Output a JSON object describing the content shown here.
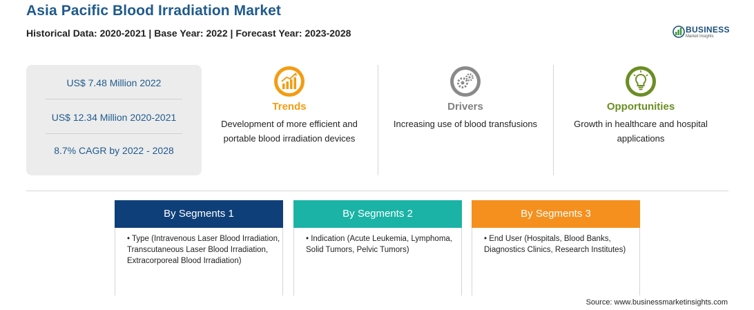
{
  "header": {
    "title": "Asia Pacific Blood Irradiation Market",
    "subtitle": "Historical Data: 2020-2021 | Base Year: 2022 | Forecast Year: 2023-2028"
  },
  "logo": {
    "name": "BUSINESS",
    "tagline": "Market Insights"
  },
  "stats": [
    "US$ 7.48 Million 2022",
    "US$ 12.34 Million 2020-2021",
    "8.7% CAGR by 2022 - 2028"
  ],
  "columns": [
    {
      "title": "Trends",
      "text": "Development of more efficient and portable blood irradiation devices",
      "icon": "trend-chart-icon",
      "color": "#f39c12"
    },
    {
      "title": "Drivers",
      "text": "Increasing use of blood transfusions",
      "icon": "gears-icon",
      "color": "#808080"
    },
    {
      "title": "Opportunities",
      "text": "Growth in healthcare and hospital applications",
      "icon": "lightbulb-icon",
      "color": "#6b8e23"
    }
  ],
  "segments": [
    {
      "title": "By Segments 1",
      "text": "• Type (Intravenous Laser Blood Irradiation, Transcutaneous Laser Blood Irradiation, Extracorporeal Blood Irradiation)",
      "color": "#0e3f78"
    },
    {
      "title": "By Segments 2",
      "text": "• Indication (Acute Leukemia, Lymphoma, Solid Tumors, Pelvic Tumors)",
      "color": "#1ab3a6"
    },
    {
      "title": "By Segments 3",
      "text": "• End User (Hospitals, Blood Banks, Diagnostics Clinics, Research Institutes)",
      "color": "#f5901e"
    }
  ],
  "source": "Source: www.businessmarketinsights.com"
}
